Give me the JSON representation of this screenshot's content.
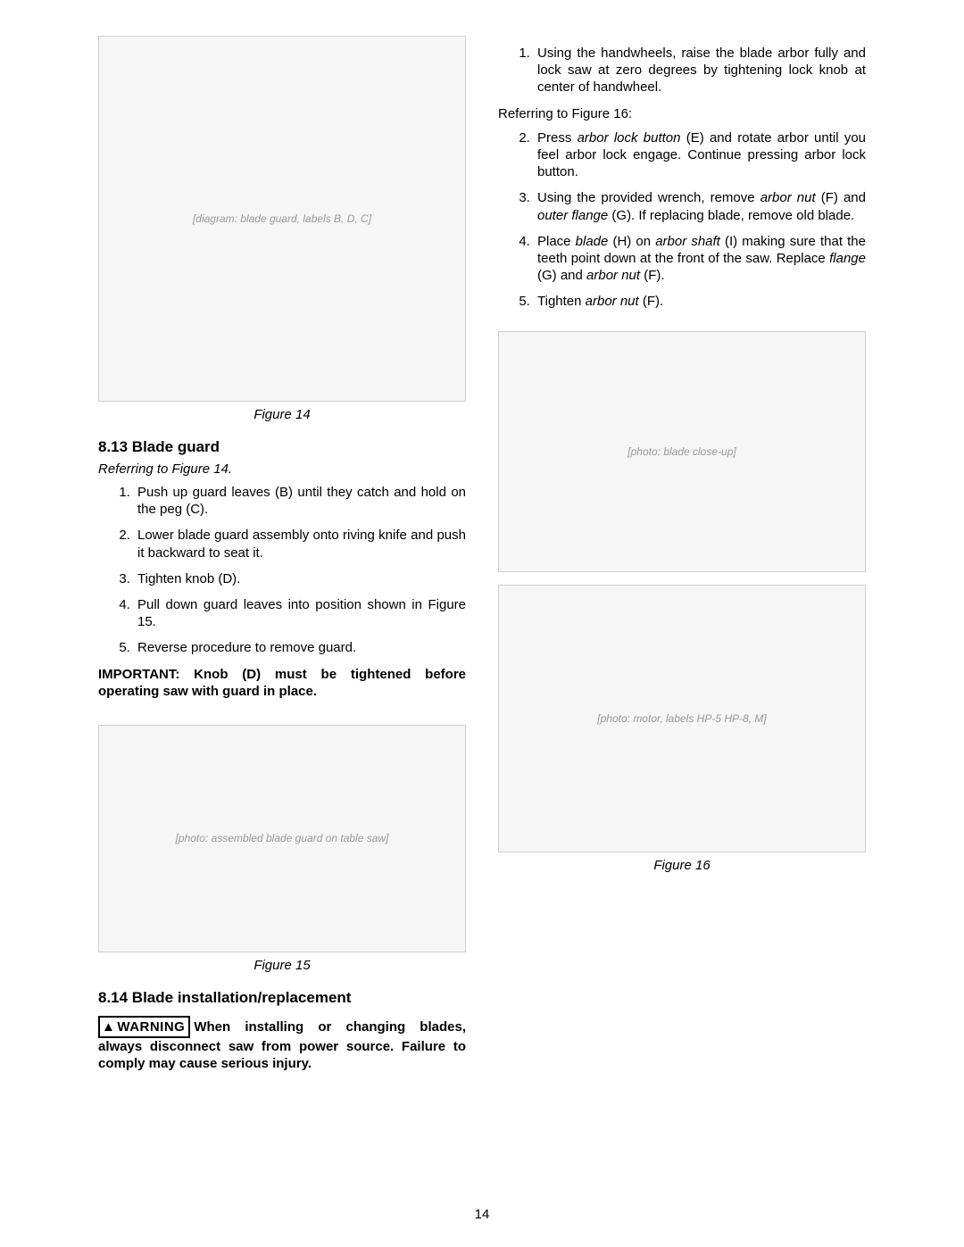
{
  "page_number": "14",
  "left": {
    "figure14": {
      "caption": "Figure 14",
      "placeholder": "[diagram: blade guard, labels B, D, C]"
    },
    "section813": {
      "heading": "8.13  Blade guard",
      "ref": "Referring to Figure 14.",
      "steps": [
        "Push up guard leaves (B) until they catch and hold on the peg (C).",
        "Lower blade guard assembly onto riving knife and push it backward to seat it.",
        "Tighten knob (D).",
        "Pull down guard leaves into position shown in Figure 15.",
        "Reverse procedure to remove guard."
      ],
      "important": "IMPORTANT: Knob (D) must be tightened before operating saw with guard in place."
    },
    "figure15": {
      "caption": "Figure 15",
      "placeholder": "[photo: assembled blade guard on table saw]"
    },
    "section814": {
      "heading": "8.14  Blade installation/replacement",
      "warning_label": "WARNING",
      "warning_text": "When installing or changing blades, always disconnect saw from power source. Failure to comply may cause serious injury."
    }
  },
  "right": {
    "steps_top": [
      "Using the handwheels, raise the blade arbor fully and lock saw at zero degrees by tightening lock knob at center of handwheel."
    ],
    "ref": "Referring to Figure 16:",
    "steps_rest": [
      {
        "html": "Press <span class=\"ital\">arbor lock button</span> (E) and rotate arbor until you feel arbor lock engage. Continue pressing arbor lock button."
      },
      {
        "html": "Using the provided wrench, remove <span class=\"ital\">arbor nut</span> (F) and <span class=\"ital\">outer flange</span> (G). If replacing blade, remove old blade."
      },
      {
        "html": "Place <span class=\"ital\">blade</span> (H) on <span class=\"ital\">arbor shaft</span> (I) making sure that the teeth point down at the front of the saw. Replace <span class=\"ital\">flange</span> (G) and <span class=\"ital\">arbor nut</span> (F)."
      },
      {
        "html": "Tighten <span class=\"ital\">arbor nut</span> (F)."
      }
    ],
    "figure16": {
      "caption": "Figure 16",
      "placeholder_top": "[photo: blade close-up]",
      "placeholder_bot": "[photo: motor, labels HP-5 HP-8, M]"
    }
  }
}
